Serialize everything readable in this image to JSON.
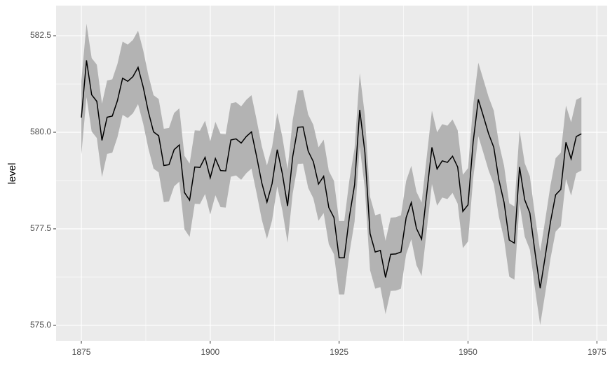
{
  "chart_data": {
    "type": "ribbon-line",
    "y_label": "level",
    "x": [
      1875,
      1876,
      1877,
      1878,
      1879,
      1880,
      1881,
      1882,
      1883,
      1884,
      1885,
      1886,
      1887,
      1888,
      1889,
      1890,
      1891,
      1892,
      1893,
      1894,
      1895,
      1896,
      1897,
      1898,
      1899,
      1900,
      1901,
      1902,
      1903,
      1904,
      1905,
      1906,
      1907,
      1908,
      1909,
      1910,
      1911,
      1912,
      1913,
      1914,
      1915,
      1916,
      1917,
      1918,
      1919,
      1920,
      1921,
      1922,
      1923,
      1924,
      1925,
      1926,
      1927,
      1928,
      1929,
      1930,
      1931,
      1932,
      1933,
      1934,
      1935,
      1936,
      1937,
      1938,
      1939,
      1940,
      1941,
      1942,
      1943,
      1944,
      1945,
      1946,
      1947,
      1948,
      1949,
      1950,
      1951,
      1952,
      1953,
      1954,
      1955,
      1956,
      1957,
      1958,
      1959,
      1960,
      1961,
      1962,
      1963,
      1964,
      1965,
      1966,
      1967,
      1968,
      1969,
      1970,
      1971,
      1972
    ],
    "values": [
      580.38,
      581.86,
      580.97,
      580.8,
      579.79,
      580.39,
      580.42,
      580.82,
      581.4,
      581.32,
      581.44,
      581.68,
      581.17,
      580.53,
      580.01,
      579.91,
      579.14,
      579.16,
      579.55,
      579.67,
      578.44,
      578.24,
      579.1,
      579.09,
      579.35,
      578.82,
      579.32,
      579.01,
      579.0,
      579.8,
      579.83,
      579.72,
      579.89,
      580.01,
      579.37,
      578.69,
      578.19,
      578.67,
      579.55,
      578.92,
      578.09,
      579.37,
      580.13,
      580.14,
      579.51,
      579.24,
      578.66,
      578.86,
      578.05,
      577.79,
      576.75,
      576.75,
      577.82,
      578.64,
      580.58,
      579.48,
      577.38,
      576.9,
      576.94,
      576.24,
      576.84,
      576.85,
      576.9,
      577.79,
      578.18,
      577.51,
      577.23,
      578.42,
      579.61,
      579.05,
      579.26,
      579.22,
      579.38,
      579.1,
      577.95,
      578.12,
      579.75,
      580.85,
      580.41,
      579.96,
      579.61,
      578.76,
      578.18,
      577.21,
      577.13,
      579.1,
      578.25,
      577.91,
      576.89,
      575.96,
      576.8,
      577.68,
      578.38,
      578.52,
      579.74,
      579.31,
      579.89,
      579.96
    ],
    "lower": [
      579.43,
      580.91,
      580.02,
      579.85,
      578.84,
      579.44,
      579.47,
      579.87,
      580.45,
      580.37,
      580.49,
      580.73,
      580.22,
      579.58,
      579.06,
      578.96,
      578.19,
      578.21,
      578.6,
      578.72,
      577.49,
      577.29,
      578.15,
      578.14,
      578.4,
      577.87,
      578.37,
      578.06,
      578.05,
      578.85,
      578.88,
      578.77,
      578.94,
      579.06,
      578.42,
      577.74,
      577.24,
      577.72,
      578.6,
      577.97,
      577.14,
      578.42,
      579.18,
      579.19,
      578.56,
      578.29,
      577.71,
      577.91,
      577.1,
      576.84,
      575.8,
      575.8,
      576.87,
      577.69,
      579.63,
      578.53,
      576.43,
      575.95,
      575.99,
      575.29,
      575.89,
      575.9,
      575.95,
      576.84,
      577.23,
      576.56,
      576.28,
      577.47,
      578.66,
      578.1,
      578.31,
      578.27,
      578.43,
      578.15,
      577.0,
      577.17,
      578.8,
      579.9,
      579.46,
      579.01,
      578.66,
      577.81,
      577.23,
      576.26,
      576.18,
      578.15,
      577.3,
      576.96,
      575.94,
      575.01,
      575.85,
      576.73,
      577.43,
      577.57,
      578.79,
      578.36,
      578.94,
      579.01
    ],
    "upper": [
      581.33,
      582.81,
      581.92,
      581.75,
      580.74,
      581.34,
      581.37,
      581.77,
      582.35,
      582.27,
      582.39,
      582.63,
      582.12,
      581.48,
      580.96,
      580.86,
      580.09,
      580.11,
      580.5,
      580.62,
      579.39,
      579.19,
      580.05,
      580.04,
      580.3,
      579.77,
      580.27,
      579.96,
      579.95,
      580.75,
      580.78,
      580.67,
      580.84,
      580.96,
      580.32,
      579.64,
      579.14,
      579.62,
      580.5,
      579.87,
      579.04,
      580.32,
      581.08,
      581.09,
      580.46,
      580.19,
      579.61,
      579.81,
      579.0,
      578.74,
      577.7,
      577.7,
      578.77,
      579.59,
      581.53,
      580.43,
      578.33,
      577.85,
      577.89,
      577.19,
      577.79,
      577.8,
      577.85,
      578.74,
      579.13,
      578.46,
      578.18,
      579.37,
      580.56,
      580.0,
      580.21,
      580.17,
      580.33,
      580.05,
      578.9,
      579.07,
      580.7,
      581.8,
      581.36,
      580.91,
      580.56,
      579.71,
      579.13,
      578.16,
      578.08,
      580.05,
      579.2,
      578.86,
      577.84,
      576.91,
      577.75,
      578.63,
      579.33,
      579.47,
      580.69,
      580.26,
      580.84,
      580.91
    ],
    "line_color": "#000000",
    "ribbon_color": "#b3b3b3",
    "xlim": [
      1870.1,
      1977.0
    ],
    "xticks": [
      1875,
      1900,
      1925,
      1950,
      1975
    ],
    "ylim": [
      574.6,
      583.28
    ],
    "yticks": [
      {
        "value": 575,
        "label": "575.0"
      },
      {
        "value": 577.5,
        "label": "577.5"
      },
      {
        "value": 580,
        "label": "580.0"
      },
      {
        "value": 582.5,
        "label": "582.5"
      }
    ],
    "grid": true
  }
}
